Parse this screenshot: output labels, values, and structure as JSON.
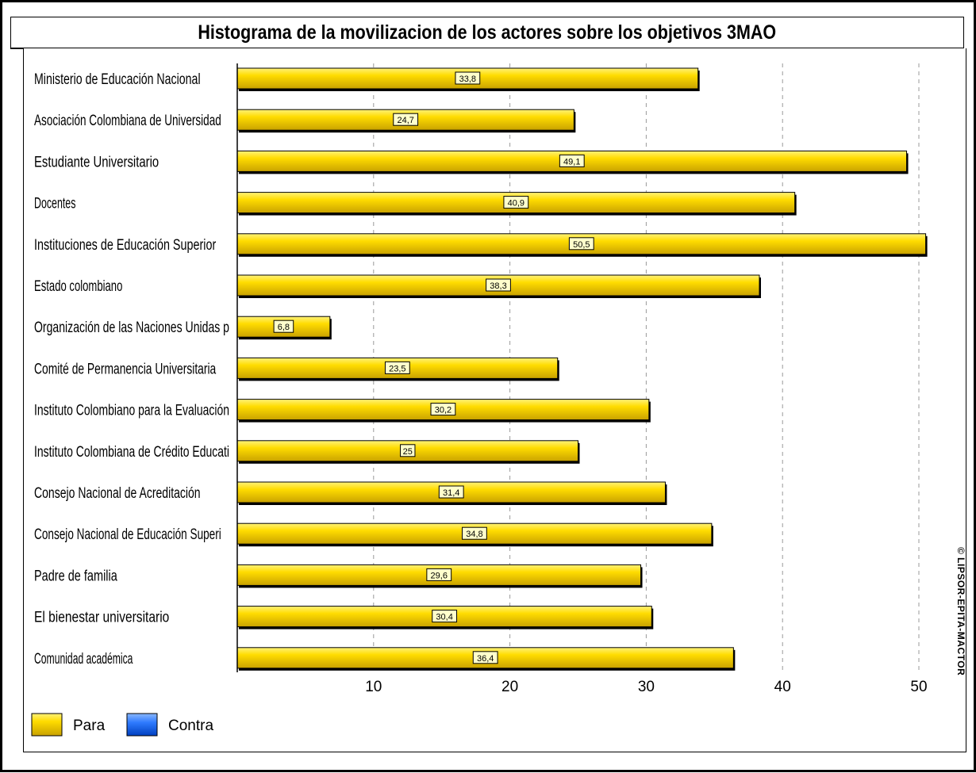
{
  "chart_data": {
    "type": "bar",
    "orientation": "horizontal",
    "title": "Histograma de la movilizacion de los actores sobre los objetivos 3MAO",
    "categories": [
      "Ministerio de Educación Nacional",
      "Asociación Colombiana de Universidad",
      "Estudiante Universitario",
      "Docentes",
      "Instituciones de Educación Superior",
      "Estado colombiano",
      "Organización de las  Naciones Unidas p",
      "Comité de Permanencia Universitaria",
      "Instituto Colombiano para la Evaluación",
      "Instituto Colombiana de  Crédito Educati",
      "Consejo Nacional de Acreditación",
      "Consejo Nacional de Educación Superi",
      "Padre de familia",
      "El bienestar universitario",
      "Comunidad académica"
    ],
    "value_labels": [
      "33,8",
      "24,7",
      "49,1",
      "40,9",
      "50,5",
      "38,3",
      "6,8",
      "23,5",
      "30,2",
      "25",
      "31,4",
      "34,8",
      "29,6",
      "30,4",
      "36,4"
    ],
    "series": [
      {
        "name": "Para",
        "color": "#f5cc00",
        "values": [
          33.8,
          24.7,
          49.1,
          40.9,
          50.5,
          38.3,
          6.8,
          23.5,
          30.2,
          25,
          31.4,
          34.8,
          29.6,
          30.4,
          36.4
        ]
      },
      {
        "name": "Contra",
        "color": "#1a66ff",
        "values": [
          0,
          0,
          0,
          0,
          0,
          0,
          0,
          0,
          0,
          0,
          0,
          0,
          0,
          0,
          0
        ]
      }
    ],
    "xlim": [
      0,
      54
    ],
    "xticks": [
      "10",
      "20",
      "30",
      "40",
      "50"
    ],
    "xtick_values": [
      10,
      20,
      30,
      40,
      50
    ],
    "grid": "vertical dashed",
    "legend_position": "bottom-left"
  },
  "watermark": "© LIPSOR-EPITA-MACTOR"
}
